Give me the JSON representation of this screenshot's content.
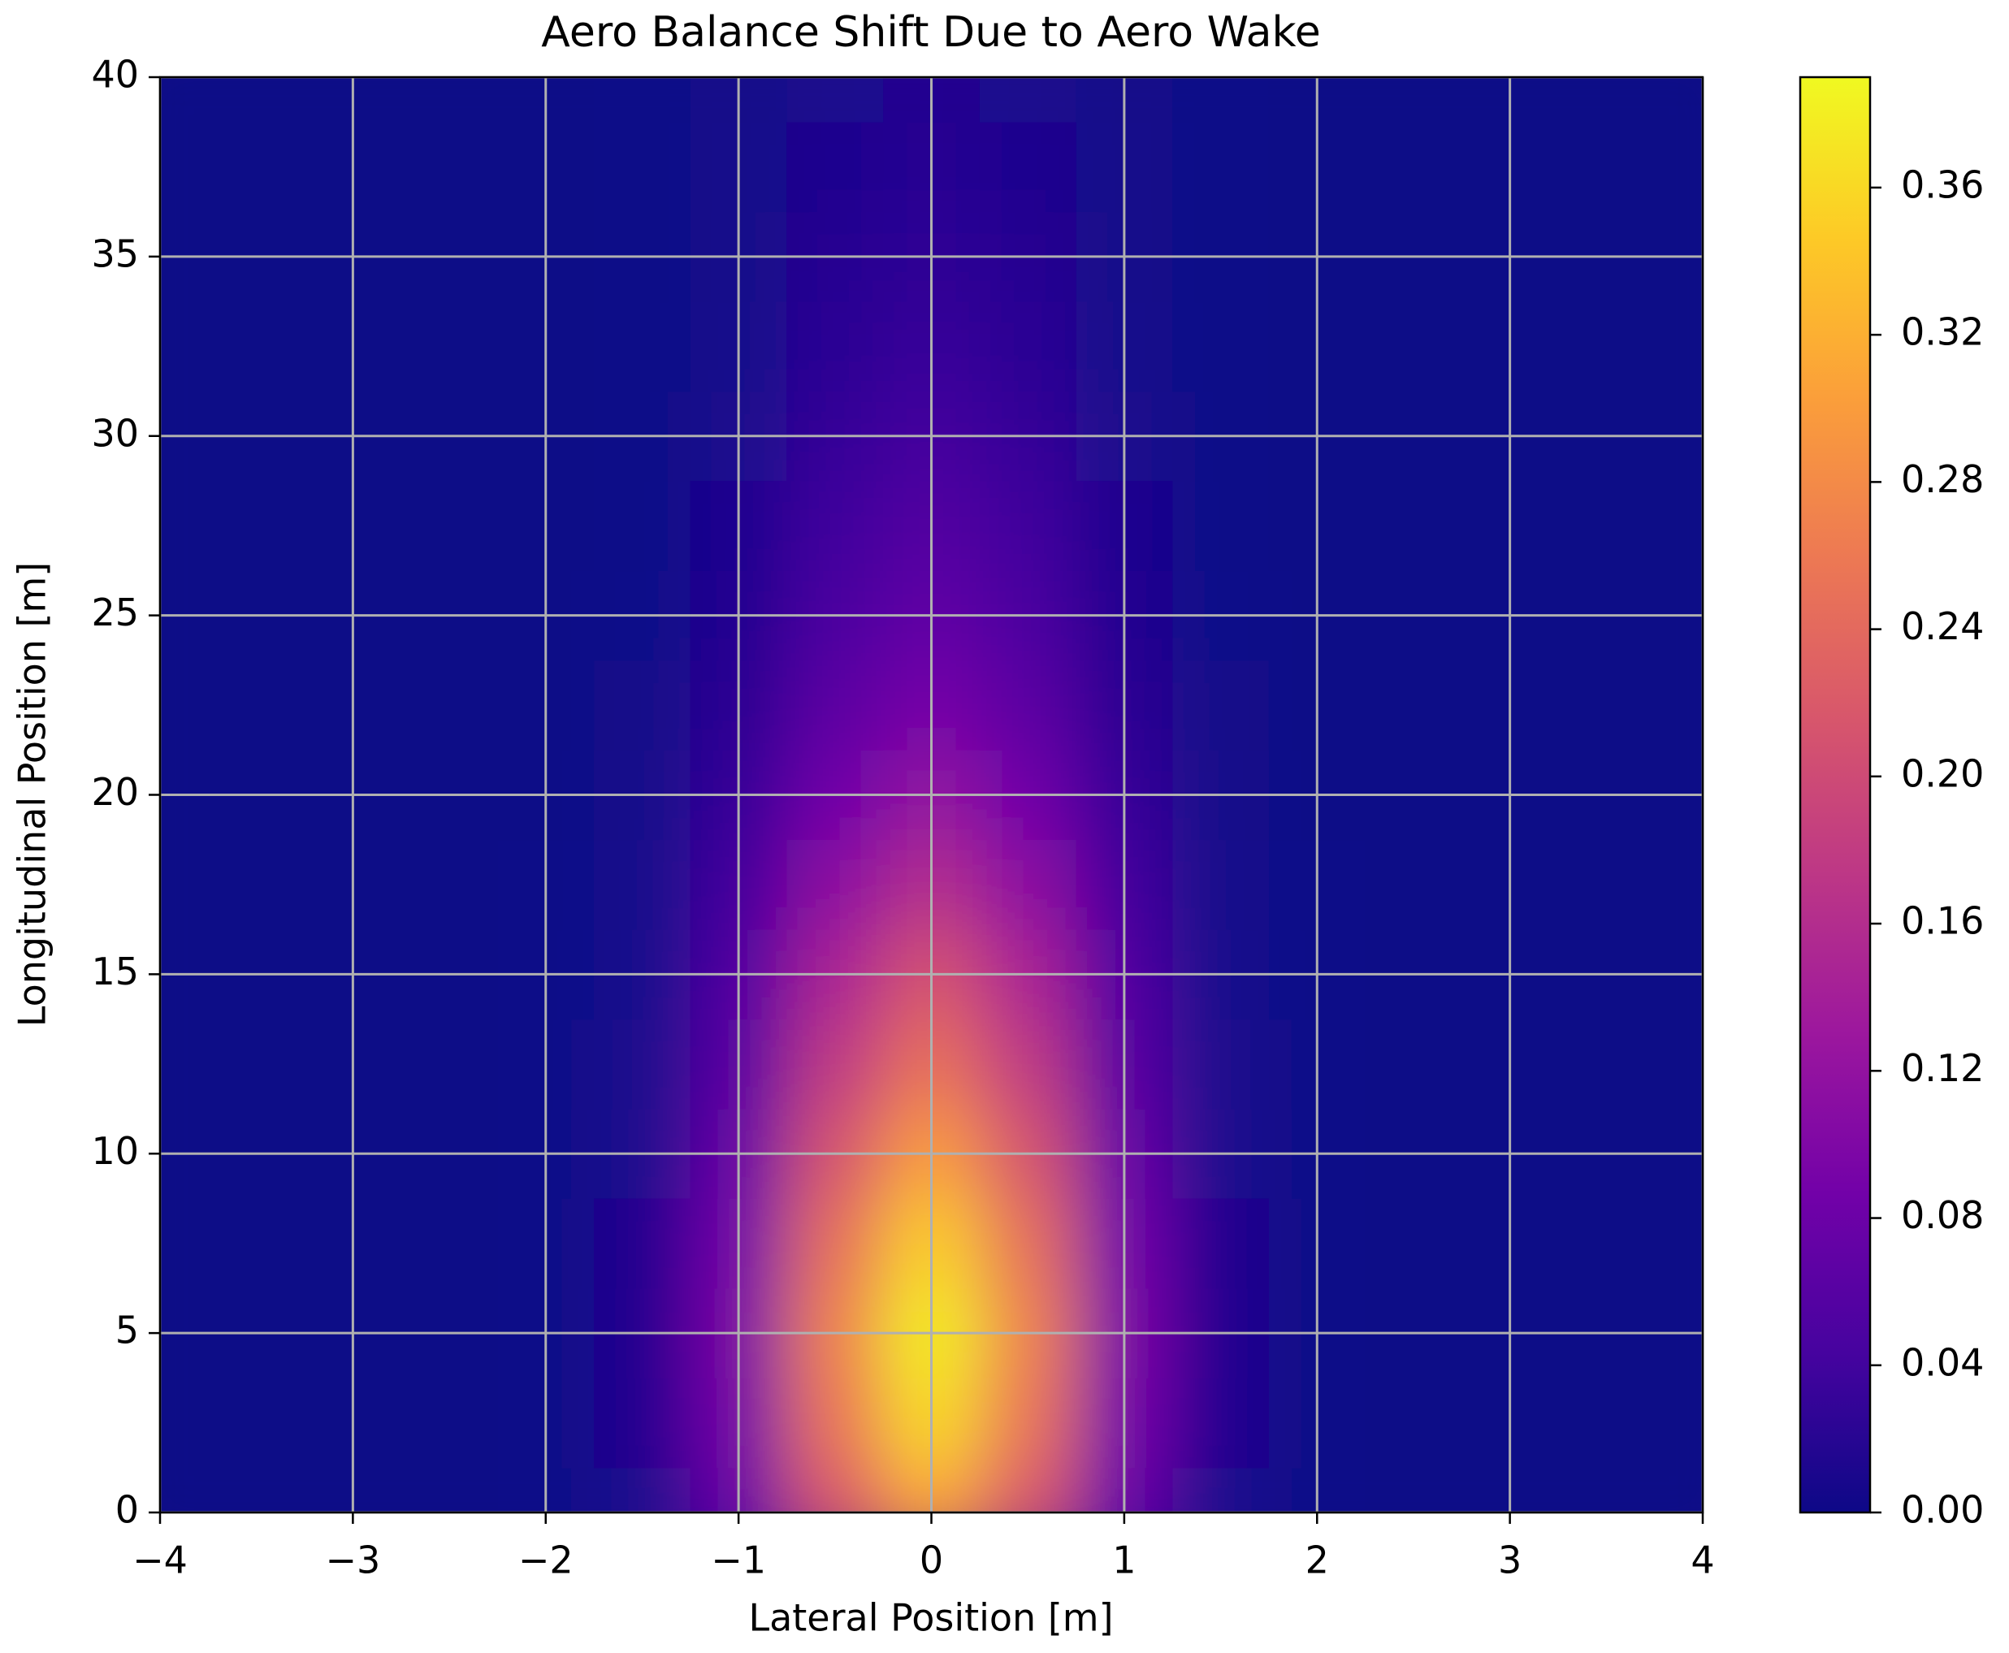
{
  "chart_data": {
    "type": "contour",
    "title": "Aero Balance Shift Due to Aero Wake",
    "xlabel": "Lateral Position [m]",
    "ylabel": "Longitudinal Position [m]",
    "x": [
      -4,
      -3.5,
      -3,
      -2.5,
      -2,
      -1.5,
      -1,
      -0.5,
      0,
      0.5,
      1,
      1.5,
      2,
      2.5,
      3,
      3.5,
      4
    ],
    "y": [
      0,
      2.5,
      5,
      7.5,
      10,
      12.5,
      15,
      17.5,
      20,
      22.5,
      25,
      27.5,
      30,
      32.5,
      35,
      37.5,
      40
    ],
    "z": [
      [
        0,
        0,
        0,
        0,
        0.001,
        0.013,
        0.075,
        0.212,
        0.3,
        0.212,
        0.075,
        0.013,
        0.001,
        0,
        0,
        0,
        0
      ],
      [
        0,
        0,
        0,
        0,
        0.001,
        0.016,
        0.09,
        0.255,
        0.36,
        0.255,
        0.09,
        0.016,
        0.001,
        0,
        0,
        0,
        0
      ],
      [
        0,
        0,
        0,
        0,
        0.002,
        0.017,
        0.095,
        0.269,
        0.38,
        0.269,
        0.095,
        0.017,
        0.002,
        0,
        0,
        0,
        0
      ],
      [
        0,
        0,
        0,
        0,
        0.001,
        0.015,
        0.087,
        0.247,
        0.35,
        0.247,
        0.087,
        0.015,
        0.001,
        0,
        0,
        0,
        0
      ],
      [
        0,
        0,
        0,
        0,
        0.001,
        0.013,
        0.075,
        0.212,
        0.3,
        0.212,
        0.075,
        0.013,
        0.001,
        0,
        0,
        0,
        0
      ],
      [
        0,
        0,
        0,
        0,
        0.001,
        0.011,
        0.062,
        0.177,
        0.25,
        0.177,
        0.062,
        0.011,
        0.001,
        0,
        0,
        0,
        0
      ],
      [
        0,
        0,
        0,
        0,
        0.001,
        0.009,
        0.052,
        0.148,
        0.21,
        0.148,
        0.052,
        0.009,
        0.001,
        0,
        0,
        0,
        0
      ],
      [
        0,
        0,
        0,
        0,
        0.001,
        0.007,
        0.04,
        0.113,
        0.16,
        0.113,
        0.04,
        0.007,
        0.001,
        0,
        0,
        0,
        0
      ],
      [
        0,
        0,
        0,
        0,
        0,
        0.005,
        0.03,
        0.085,
        0.12,
        0.085,
        0.03,
        0.005,
        0,
        0,
        0,
        0,
        0
      ],
      [
        0,
        0,
        0,
        0,
        0,
        0.004,
        0.022,
        0.064,
        0.09,
        0.064,
        0.022,
        0.004,
        0,
        0,
        0,
        0,
        0
      ],
      [
        0,
        0,
        0,
        0,
        0,
        0.003,
        0.017,
        0.049,
        0.07,
        0.049,
        0.017,
        0.003,
        0,
        0,
        0,
        0,
        0
      ],
      [
        0,
        0,
        0,
        0,
        0,
        0.002,
        0.014,
        0.039,
        0.055,
        0.039,
        0.014,
        0.002,
        0,
        0,
        0,
        0,
        0
      ],
      [
        0,
        0,
        0,
        0,
        0,
        0.002,
        0.01,
        0.03,
        0.042,
        0.03,
        0.01,
        0.002,
        0,
        0,
        0,
        0,
        0
      ],
      [
        0,
        0,
        0,
        0,
        0,
        0.001,
        0.008,
        0.023,
        0.033,
        0.023,
        0.008,
        0.001,
        0,
        0,
        0,
        0,
        0
      ],
      [
        0,
        0,
        0,
        0,
        0,
        0.001,
        0.006,
        0.018,
        0.026,
        0.018,
        0.006,
        0.001,
        0,
        0,
        0,
        0,
        0
      ],
      [
        0,
        0,
        0,
        0,
        0,
        0.001,
        0.005,
        0.014,
        0.02,
        0.014,
        0.005,
        0.001,
        0,
        0,
        0,
        0,
        0
      ],
      [
        0,
        0,
        0,
        0,
        0,
        0.001,
        0.004,
        0.011,
        0.016,
        0.011,
        0.004,
        0.001,
        0,
        0,
        0,
        0,
        0
      ]
    ],
    "xlim": [
      -4,
      4
    ],
    "ylim": [
      0,
      40
    ],
    "xticks": [
      {
        "value": -4,
        "label": "−4"
      },
      {
        "value": -3,
        "label": "−3"
      },
      {
        "value": -2,
        "label": "−2"
      },
      {
        "value": -1,
        "label": "−1"
      },
      0,
      1,
      2,
      3,
      4
    ],
    "yticks": [
      0,
      5,
      10,
      15,
      20,
      25,
      30,
      35,
      40
    ],
    "grid": true,
    "grid_color": "#b0b0b0",
    "colorbar": {
      "clim": [
        0,
        0.39
      ],
      "ticks": [
        {
          "value": 0,
          "label": "0.00"
        },
        {
          "value": 0.04,
          "label": "0.04"
        },
        {
          "value": 0.08,
          "label": "0.08"
        },
        {
          "value": 0.12,
          "label": "0.12"
        },
        {
          "value": 0.16,
          "label": "0.16"
        },
        {
          "value": 0.2,
          "label": "0.20"
        },
        {
          "value": 0.24,
          "label": "0.24"
        },
        {
          "value": 0.28,
          "label": "0.28"
        },
        {
          "value": 0.32,
          "label": "0.32"
        },
        {
          "value": 0.36,
          "label": "0.36"
        }
      ],
      "colors": [
        "#0d0887",
        "#46039f",
        "#7201a8",
        "#9c179e",
        "#bd3786",
        "#d8576b",
        "#ed7953",
        "#fb9f3a",
        "#fdca26",
        "#f0f921"
      ]
    }
  }
}
